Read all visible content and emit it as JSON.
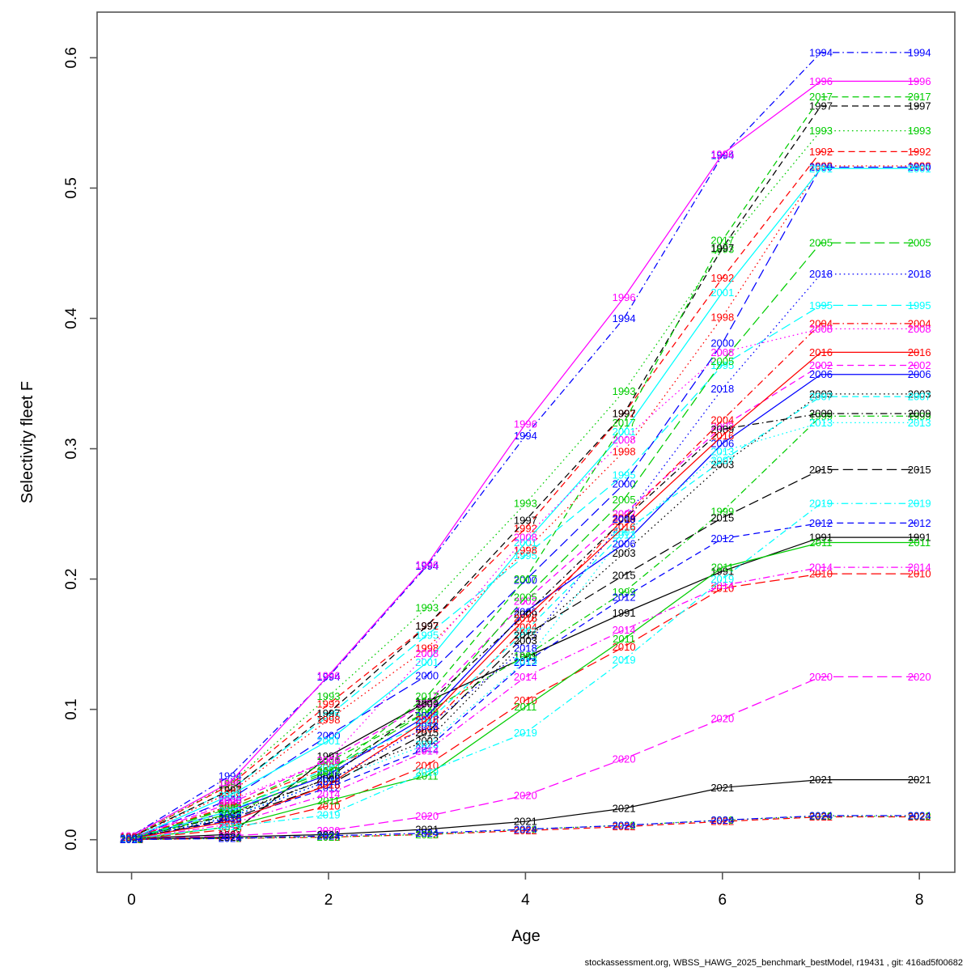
{
  "footer": "stockassessment.org, WBSS_HAWG_2025_benchmark_bestModel, r19431 , git: 416ad5f00682",
  "chart_data": {
    "type": "line",
    "title": "",
    "xlabel": "Age",
    "ylabel": "Selectivity fleet F",
    "x": [
      0,
      1,
      2,
      3,
      4,
      5,
      6,
      7,
      8
    ],
    "xticks": [
      0,
      2,
      4,
      6,
      8
    ],
    "yticks": [
      0.0,
      0.1,
      0.2,
      0.3,
      0.4,
      0.5,
      0.6
    ],
    "xlim": [
      -0.35,
      8.36
    ],
    "ylim": [
      -0.025,
      0.635
    ],
    "grid": false,
    "legend_position": "labels-on-lines",
    "label_style": "year text drawn at every data point in series color",
    "palette_cycle": [
      "#000000",
      "#FF0000",
      "#00CD00",
      "#0000FF",
      "#00FFFF",
      "#FF00FF"
    ],
    "linetype_cycle": [
      "solid",
      "dashed",
      "dotted",
      "dotdash",
      "longdash"
    ],
    "series": [
      {
        "year": "1991",
        "color": "#000000",
        "linetype": "solid",
        "values": [
          0.001,
          0.004,
          0.064,
          0.106,
          0.14,
          0.174,
          0.206,
          0.232,
          0.232
        ]
      },
      {
        "year": "1992",
        "color": "#FF0000",
        "linetype": "dashed",
        "values": [
          0.002,
          0.042,
          0.104,
          0.164,
          0.239,
          0.327,
          0.431,
          0.528,
          0.528
        ]
      },
      {
        "year": "1993",
        "color": "#00CD00",
        "linetype": "dotted",
        "values": [
          0.002,
          0.043,
          0.11,
          0.178,
          0.258,
          0.344,
          0.453,
          0.544,
          0.544
        ]
      },
      {
        "year": "1994",
        "color": "#0000FF",
        "linetype": "dotdash",
        "values": [
          0.003,
          0.049,
          0.125,
          0.21,
          0.31,
          0.4,
          0.525,
          0.604,
          0.604
        ]
      },
      {
        "year": "1995",
        "color": "#00FFFF",
        "linetype": "longdash",
        "values": [
          0.002,
          0.038,
          0.095,
          0.157,
          0.218,
          0.28,
          0.364,
          0.41,
          0.41
        ]
      },
      {
        "year": "1996",
        "color": "#FF00FF",
        "linetype": "solid",
        "values": [
          0.003,
          0.044,
          0.126,
          0.211,
          0.319,
          0.416,
          0.526,
          0.582,
          0.582
        ]
      },
      {
        "year": "1997",
        "color": "#000000",
        "linetype": "dashed",
        "values": [
          0.002,
          0.038,
          0.097,
          0.164,
          0.245,
          0.327,
          0.454,
          0.563,
          0.563
        ]
      },
      {
        "year": "1998",
        "color": "#FF0000",
        "linetype": "dotted",
        "values": [
          0.002,
          0.036,
          0.092,
          0.147,
          0.222,
          0.298,
          0.401,
          0.517,
          0.517
        ]
      },
      {
        "year": "1999",
        "color": "#00CD00",
        "linetype": "dotdash",
        "values": [
          0.001,
          0.025,
          0.06,
          0.098,
          0.141,
          0.19,
          0.252,
          0.325,
          0.325
        ]
      },
      {
        "year": "2000",
        "color": "#0000FF",
        "linetype": "longdash",
        "values": [
          0.001,
          0.031,
          0.08,
          0.126,
          0.199,
          0.273,
          0.381,
          0.516,
          0.516
        ]
      },
      {
        "year": "2001",
        "color": "#00FFFF",
        "linetype": "solid",
        "values": [
          0.001,
          0.034,
          0.076,
          0.136,
          0.228,
          0.313,
          0.42,
          0.515,
          0.515
        ]
      },
      {
        "year": "2002",
        "color": "#FF00FF",
        "linetype": "dashed",
        "values": [
          0.001,
          0.028,
          0.061,
          0.105,
          0.183,
          0.25,
          0.317,
          0.364,
          0.364
        ]
      },
      {
        "year": "2003",
        "color": "#000000",
        "linetype": "dotted",
        "values": [
          0.001,
          0.02,
          0.047,
          0.076,
          0.153,
          0.22,
          0.288,
          0.342,
          0.342
        ]
      },
      {
        "year": "2004",
        "color": "#FF0000",
        "linetype": "dotdash",
        "values": [
          0.001,
          0.026,
          0.056,
          0.085,
          0.163,
          0.247,
          0.322,
          0.396,
          0.396
        ]
      },
      {
        "year": "2005",
        "color": "#00CD00",
        "linetype": "longdash",
        "values": [
          0.001,
          0.024,
          0.053,
          0.098,
          0.186,
          0.261,
          0.367,
          0.458,
          0.458
        ]
      },
      {
        "year": "2006",
        "color": "#0000FF",
        "linetype": "solid",
        "values": [
          0.001,
          0.022,
          0.05,
          0.095,
          0.175,
          0.227,
          0.304,
          0.357,
          0.357
        ]
      },
      {
        "year": "2007",
        "color": "#00FFFF",
        "linetype": "dashed",
        "values": [
          0.001,
          0.022,
          0.055,
          0.09,
          0.16,
          0.236,
          0.291,
          0.34,
          0.34
        ]
      },
      {
        "year": "2008",
        "color": "#FF00FF",
        "linetype": "dotted",
        "values": [
          0.001,
          0.03,
          0.061,
          0.143,
          0.232,
          0.307,
          0.374,
          0.392,
          0.392
        ]
      },
      {
        "year": "2009",
        "color": "#000000",
        "linetype": "dotdash",
        "values": [
          0.001,
          0.019,
          0.047,
          0.104,
          0.173,
          0.246,
          0.315,
          0.327,
          0.327
        ]
      },
      {
        "year": "2010",
        "color": "#FF0000",
        "linetype": "longdash",
        "values": [
          0.0005,
          0.008,
          0.026,
          0.057,
          0.107,
          0.148,
          0.193,
          0.204,
          0.204
        ]
      },
      {
        "year": "2011",
        "color": "#00CD00",
        "linetype": "solid",
        "values": [
          0.0005,
          0.01,
          0.03,
          0.049,
          0.102,
          0.154,
          0.209,
          0.228,
          0.228
        ]
      },
      {
        "year": "2012",
        "color": "#0000FF",
        "linetype": "dashed",
        "values": [
          0.001,
          0.015,
          0.04,
          0.07,
          0.136,
          0.186,
          0.231,
          0.243,
          0.243
        ]
      },
      {
        "year": "2013",
        "color": "#00FFFF",
        "linetype": "dotted",
        "values": [
          0.001,
          0.018,
          0.045,
          0.073,
          0.137,
          0.234,
          0.298,
          0.32,
          0.32
        ]
      },
      {
        "year": "2014",
        "color": "#FF00FF",
        "linetype": "dotdash",
        "values": [
          0.0005,
          0.012,
          0.035,
          0.068,
          0.125,
          0.161,
          0.195,
          0.209,
          0.209
        ]
      },
      {
        "year": "2015",
        "color": "#000000",
        "linetype": "longdash",
        "values": [
          0.001,
          0.016,
          0.042,
          0.082,
          0.157,
          0.203,
          0.247,
          0.284,
          0.284
        ]
      },
      {
        "year": "2016",
        "color": "#FF0000",
        "linetype": "solid",
        "values": [
          0.001,
          0.014,
          0.042,
          0.092,
          0.17,
          0.24,
          0.31,
          0.374,
          0.374
        ]
      },
      {
        "year": "2017",
        "color": "#00CD00",
        "linetype": "dashed",
        "values": [
          0.001,
          0.02,
          0.052,
          0.11,
          0.2,
          0.32,
          0.46,
          0.57,
          0.57
        ]
      },
      {
        "year": "2018",
        "color": "#0000FF",
        "linetype": "dotted",
        "values": [
          0.001,
          0.017,
          0.045,
          0.087,
          0.147,
          0.246,
          0.346,
          0.434,
          0.434
        ]
      },
      {
        "year": "2019",
        "color": "#00FFFF",
        "linetype": "dotdash",
        "values": [
          0.0005,
          0.01,
          0.019,
          0.052,
          0.082,
          0.138,
          0.2,
          0.258,
          0.258
        ]
      },
      {
        "year": "2020",
        "color": "#FF00FF",
        "linetype": "longdash",
        "values": [
          0.0003,
          0.003,
          0.007,
          0.018,
          0.034,
          0.062,
          0.093,
          0.125,
          0.125
        ]
      },
      {
        "year": "2021",
        "color": "#000000",
        "linetype": "solid",
        "values": [
          0.0002,
          0.002,
          0.004,
          0.008,
          0.014,
          0.024,
          0.04,
          0.046,
          0.046
        ]
      },
      {
        "year": "2022",
        "color": "#FF0000",
        "linetype": "dashed",
        "values": [
          0.0001,
          0.001,
          0.002,
          0.004,
          0.007,
          0.01,
          0.014,
          0.0175,
          0.0175
        ]
      },
      {
        "year": "2023",
        "color": "#00CD00",
        "linetype": "dotted",
        "values": [
          0.0001,
          0.001,
          0.002,
          0.004,
          0.008,
          0.011,
          0.015,
          0.018,
          0.018
        ]
      },
      {
        "year": "2024",
        "color": "#0000FF",
        "linetype": "dotdash",
        "values": [
          0.0001,
          0.001,
          0.003,
          0.005,
          0.008,
          0.011,
          0.015,
          0.0185,
          0.0185
        ]
      }
    ]
  }
}
